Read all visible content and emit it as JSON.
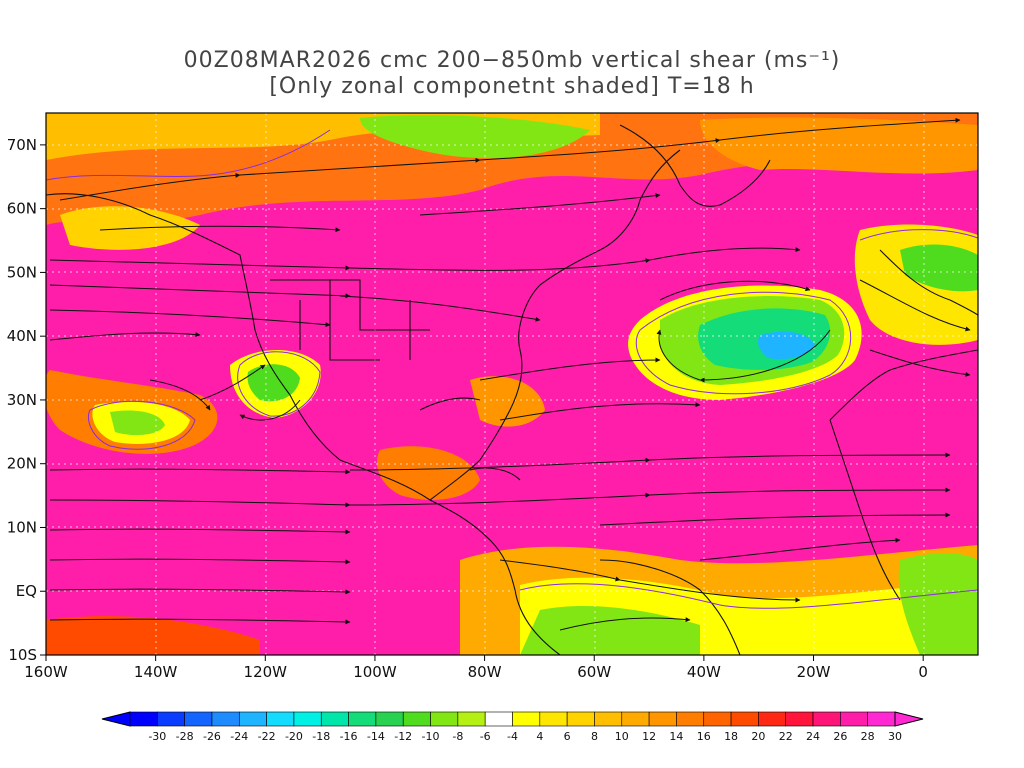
{
  "title": {
    "line1": "00Z08MAR2026 cmc 200−850mb vertical shear (ms⁻¹)",
    "line2": "[Only zonal componetnt shaded] T=18 h"
  },
  "map": {
    "lon_range": [
      -160,
      10
    ],
    "lat_range": [
      -10,
      75
    ],
    "lon_ticks": [
      {
        "lon": -160,
        "label": "160W"
      },
      {
        "lon": -140,
        "label": "140W"
      },
      {
        "lon": -120,
        "label": "120W"
      },
      {
        "lon": -100,
        "label": "100W"
      },
      {
        "lon": -80,
        "label": "80W"
      },
      {
        "lon": -60,
        "label": "60W"
      },
      {
        "lon": -40,
        "label": "40W"
      },
      {
        "lon": -20,
        "label": "20W"
      },
      {
        "lon": 0,
        "label": "0"
      }
    ],
    "lat_ticks": [
      {
        "lat": 70,
        "label": "70N"
      },
      {
        "lat": 60,
        "label": "60N"
      },
      {
        "lat": 50,
        "label": "50N"
      },
      {
        "lat": 40,
        "label": "40N"
      },
      {
        "lat": 30,
        "label": "30N"
      },
      {
        "lat": 20,
        "label": "20N"
      },
      {
        "lat": 10,
        "label": "10N"
      },
      {
        "lat": 0,
        "label": "EQ"
      },
      {
        "lat": -10,
        "label": "10S"
      }
    ],
    "colorbar": {
      "labels": [
        "-30",
        "-28",
        "-26",
        "-24",
        "-22",
        "-20",
        "-18",
        "-16",
        "-14",
        "-12",
        "-10",
        "-8",
        "-6",
        "-4",
        "4",
        "6",
        "8",
        "10",
        "12",
        "14",
        "16",
        "18",
        "20",
        "22",
        "24",
        "26",
        "28",
        "30"
      ],
      "colors": [
        "#0000ff",
        "#0a3cff",
        "#1464ff",
        "#1e8cff",
        "#1eb4ff",
        "#14dcff",
        "#00f0e6",
        "#00e6aa",
        "#14dc78",
        "#28d250",
        "#50dc1e",
        "#82e614",
        "#b4f014",
        "#ffffff",
        "#ffff00",
        "#ffe600",
        "#ffd200",
        "#ffbe00",
        "#ffaa00",
        "#ff9600",
        "#ff7d00",
        "#ff6400",
        "#ff4b00",
        "#ff2814",
        "#ff143c",
        "#ff1478",
        "#ff1eaa",
        "#ff28d2"
      ],
      "low_color": "#0000ff",
      "high_color": "#ff28d2"
    }
  }
}
